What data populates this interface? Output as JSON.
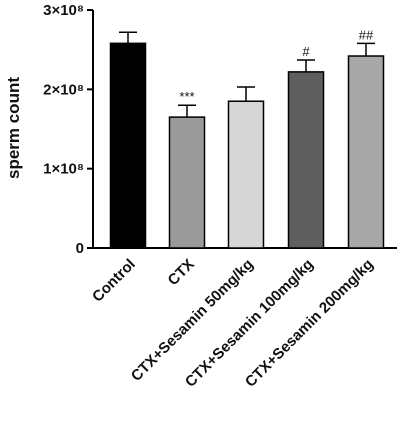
{
  "chart_data": {
    "type": "bar",
    "title": "",
    "xlabel": "",
    "ylabel": "sperm count",
    "ylim": [
      0,
      300000000
    ],
    "yticks": [
      {
        "value": 0,
        "label": "0"
      },
      {
        "value": 100000000,
        "label": "1×10⁸"
      },
      {
        "value": 200000000,
        "label": "2×10⁸"
      },
      {
        "value": 300000000,
        "label": "3×10⁸"
      }
    ],
    "categories": [
      "Control",
      "CTX",
      "CTX+Sesamin 50mg/kg",
      "CTX+Sesamin 100mg/kg",
      "CTX+Sesamin 200mg/kg"
    ],
    "values": [
      258000000,
      165000000,
      185000000,
      222000000,
      242000000
    ],
    "error": [
      14000000,
      15000000,
      18000000,
      15000000,
      16000000
    ],
    "bar_colors": [
      "#000000",
      "#9a9a9a",
      "#d6d6d6",
      "#5f5f5f",
      "#a8a8a8"
    ],
    "annotations": [
      "",
      "***",
      "",
      "#",
      "##"
    ],
    "grid": false,
    "legend": "none"
  }
}
